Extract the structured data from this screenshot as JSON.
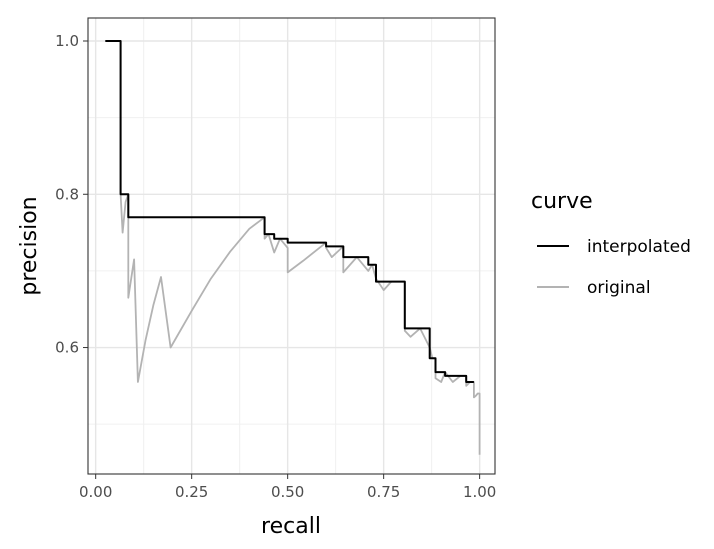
{
  "chart_data": {
    "type": "line",
    "xlabel": "recall",
    "ylabel": "precision",
    "xlim": [
      -0.02,
      1.04
    ],
    "ylim": [
      0.435,
      1.03
    ],
    "x_ticks": [
      0.0,
      0.25,
      0.5,
      0.75,
      1.0
    ],
    "x_tick_labels": [
      "0.00",
      "0.25",
      "0.50",
      "0.75",
      "1.00"
    ],
    "y_ticks": [
      0.6,
      0.8,
      1.0
    ],
    "y_tick_labels": [
      "0.6",
      "0.8",
      "1.0"
    ],
    "grid": true,
    "legend": {
      "title": "curve",
      "position": "right"
    },
    "series": [
      {
        "name": "interpolated",
        "color": "#000000",
        "x": [
          0.025,
          0.065,
          0.065,
          0.085,
          0.085,
          0.44,
          0.44,
          0.465,
          0.465,
          0.5,
          0.5,
          0.6,
          0.6,
          0.645,
          0.645,
          0.71,
          0.71,
          0.73,
          0.73,
          0.805,
          0.805,
          0.87,
          0.87,
          0.885,
          0.885,
          0.91,
          0.91,
          0.965,
          0.965,
          0.985
        ],
        "y": [
          1.0,
          1.0,
          0.8,
          0.8,
          0.77,
          0.77,
          0.748,
          0.748,
          0.742,
          0.742,
          0.737,
          0.737,
          0.732,
          0.732,
          0.718,
          0.718,
          0.708,
          0.708,
          0.686,
          0.686,
          0.625,
          0.625,
          0.586,
          0.586,
          0.568,
          0.568,
          0.563,
          0.563,
          0.555,
          0.555
        ]
      },
      {
        "name": "original",
        "color": "#b3b3b3",
        "x": [
          0.065,
          0.065,
          0.07,
          0.078,
          0.085,
          0.085,
          0.1,
          0.11,
          0.11,
          0.13,
          0.15,
          0.17,
          0.195,
          0.195,
          0.25,
          0.3,
          0.35,
          0.4,
          0.44,
          0.44,
          0.45,
          0.465,
          0.465,
          0.48,
          0.5,
          0.5,
          0.54,
          0.6,
          0.6,
          0.615,
          0.645,
          0.645,
          0.68,
          0.71,
          0.71,
          0.72,
          0.73,
          0.73,
          0.75,
          0.77,
          0.805,
          0.805,
          0.82,
          0.845,
          0.87,
          0.87,
          0.877,
          0.885,
          0.885,
          0.9,
          0.91,
          0.91,
          0.93,
          0.95,
          0.965,
          0.965,
          0.975,
          0.985,
          0.985,
          0.99,
          0.995,
          1.0,
          1.0
        ],
        "y": [
          1.0,
          0.8,
          0.75,
          0.79,
          0.8,
          0.665,
          0.715,
          0.555,
          0.555,
          0.61,
          0.655,
          0.692,
          0.6,
          0.6,
          0.648,
          0.69,
          0.725,
          0.755,
          0.77,
          0.742,
          0.748,
          0.724,
          0.724,
          0.742,
          0.73,
          0.698,
          0.713,
          0.737,
          0.73,
          0.718,
          0.732,
          0.698,
          0.718,
          0.7,
          0.7,
          0.708,
          0.69,
          0.69,
          0.675,
          0.686,
          0.686,
          0.622,
          0.614,
          0.625,
          0.6,
          0.6,
          0.586,
          0.586,
          0.56,
          0.555,
          0.568,
          0.568,
          0.555,
          0.563,
          0.563,
          0.55,
          0.555,
          0.555,
          0.535,
          0.537,
          0.54,
          0.54,
          0.46
        ]
      }
    ]
  }
}
